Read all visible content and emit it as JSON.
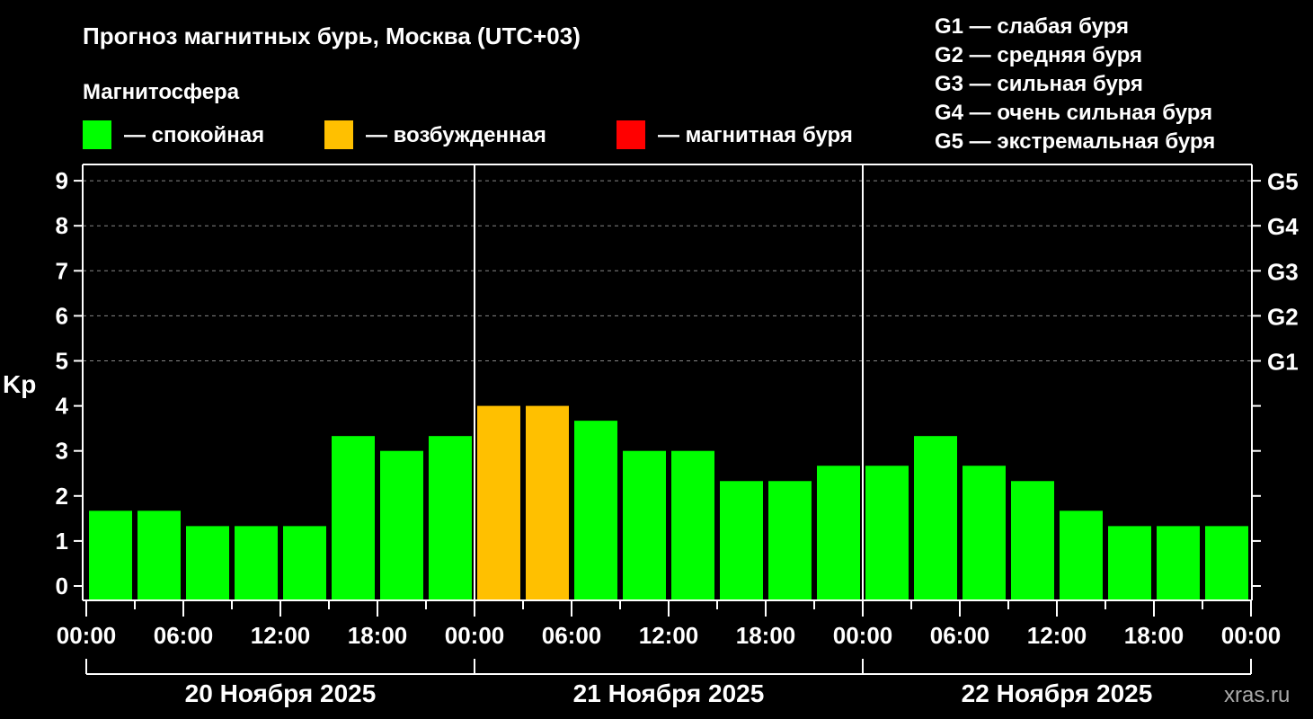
{
  "chart_data": {
    "type": "bar",
    "title": "Прогноз магнитных бурь, Москва (UTC+03)",
    "legend_title": "Магнитосфера",
    "legend": [
      {
        "label": "— спокойная",
        "color": "#00ff00"
      },
      {
        "label": "— возбужденная",
        "color": "#ffc000"
      },
      {
        "label": "— магнитная буря",
        "color": "#ff0000"
      }
    ],
    "storm_levels": [
      "G1 — слабая буря",
      "G2 — средняя буря",
      "G3 — сильная буря",
      "G4 — очень сильная буря",
      "G5 — экстремальная буря"
    ],
    "ylabel": "Kp",
    "ylim": [
      0,
      9
    ],
    "yticks": [
      "0",
      "1",
      "2",
      "3",
      "4",
      "5",
      "6",
      "7",
      "8",
      "9"
    ],
    "right_ticks": [
      {
        "kp": 5,
        "label": "G1"
      },
      {
        "kp": 6,
        "label": "G2"
      },
      {
        "kp": 7,
        "label": "G3"
      },
      {
        "kp": 8,
        "label": "G4"
      },
      {
        "kp": 9,
        "label": "G5"
      }
    ],
    "grid": "dashed horizontal at Kp 5-9",
    "xticks": [
      "00:00",
      "06:00",
      "12:00",
      "18:00",
      "00:00",
      "06:00",
      "12:00",
      "18:00",
      "00:00",
      "06:00",
      "12:00",
      "18:00",
      "00:00"
    ],
    "days": [
      "20 Ноября 2025",
      "21 Ноября 2025",
      "22 Ноября 2025"
    ],
    "interval_hours": 3,
    "values": [
      1.67,
      1.67,
      1.33,
      1.33,
      1.33,
      3.33,
      3.0,
      3.33,
      4.0,
      4.0,
      3.67,
      3.0,
      3.0,
      2.33,
      2.33,
      2.67,
      2.67,
      3.33,
      2.67,
      2.33,
      1.67,
      1.33,
      1.33,
      1.33
    ],
    "colors": {
      "quiet": "#00ff00",
      "active": "#ffc000",
      "storm": "#ff0000"
    }
  },
  "watermark": "xras.ru"
}
